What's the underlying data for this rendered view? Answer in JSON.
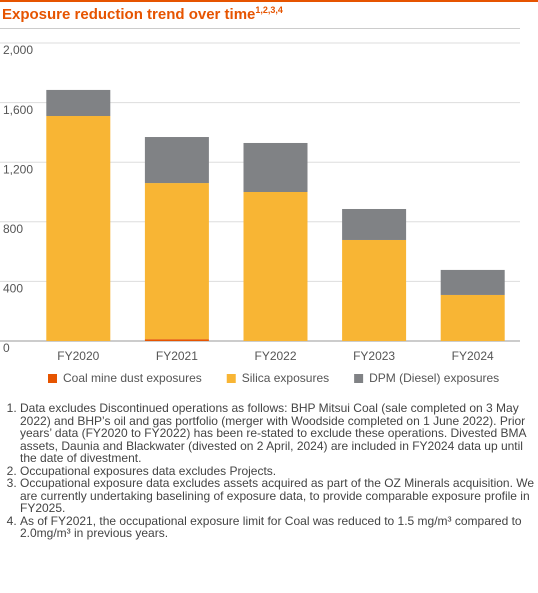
{
  "chart_data": {
    "type": "stacked_bar",
    "title": "Exposure reduction trend over time",
    "title_note": "1,2,3,4",
    "categories": [
      "FY2020",
      "FY2021",
      "FY2022",
      "FY2023",
      "FY2024"
    ],
    "series": [
      {
        "name": "Coal mine dust exposures",
        "color": "#e65400",
        "values": [
          0,
          12,
          0,
          0,
          0
        ]
      },
      {
        "name": "Silica exposures",
        "color": "#f8b534",
        "values": [
          1510,
          1048,
          1000,
          678,
          309
        ]
      },
      {
        "name": "DPM (Diesel) exposures",
        "color": "#808285",
        "values": [
          175,
          309,
          329,
          208,
          168
        ]
      }
    ],
    "ylim": [
      0,
      2000
    ],
    "yticks": [
      0,
      400,
      800,
      {
        "value": 1200,
        "label": "1,200"
      },
      {
        "value": 1600,
        "label": "1,600"
      },
      {
        "value": 2000,
        "label": "2,000"
      }
    ],
    "grid": true,
    "legend": "bottom"
  },
  "footnotes": [
    "Data excludes Discontinued operations as follows: BHP Mitsui Coal (sale completed on 3 May 2022) and BHP’s oil and gas portfolio (merger with Woodside completed on 1 June 2022). Prior years’ data (FY2020 to FY2022) has been re-stated to exclude these operations. Divested BMA assets, Daunia and Blackwater (divested on 2 April, 2024) are included in FY2024 data up until the date of divestment.",
    "Occupational exposures data excludes Projects.",
    "Occupational exposure data excludes assets acquired as part of the OZ Minerals acquisition. We are currently undertaking baselining of exposure data, to provide comparable exposure profile in FY2025.",
    "As of FY2021, the occupational exposure limit for Coal was reduced to 1.5 mg/m³ compared to 2.0mg/m³ in previous years."
  ]
}
